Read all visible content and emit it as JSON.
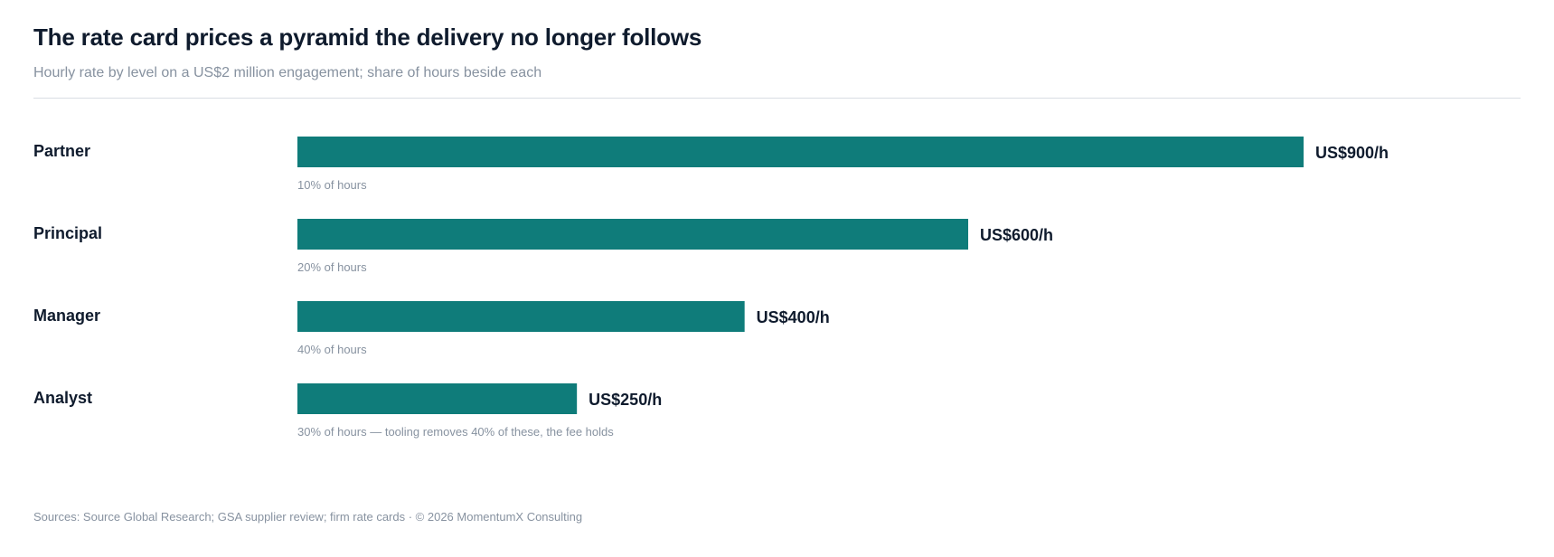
{
  "header": {
    "title": "The rate card prices a pyramid the delivery no longer follows",
    "subtitle": "Hourly rate by level on a US$2 million engagement; share of hours beside each"
  },
  "footer": {
    "source": "Sources: Source Global Research; GSA supplier review; firm rate cards · © 2026 MomentumX Consulting"
  },
  "colors": {
    "bar": "#0f7c7a",
    "label": "#0f1b2d",
    "note": "#8792a0"
  },
  "chart_data": {
    "type": "bar",
    "orientation": "horizontal",
    "title": "The rate card prices a pyramid the delivery no longer follows",
    "subtitle": "Hourly rate by level on a US$2 million engagement; share of hours beside each",
    "categories": [
      "Partner",
      "Principal",
      "Manager",
      "Analyst"
    ],
    "values": [
      900,
      600,
      400,
      250
    ],
    "value_labels": [
      "US$900/h",
      "US$600/h",
      "US$400/h",
      "US$250/h"
    ],
    "notes": [
      "10% of hours",
      "20% of hours",
      "40% of hours",
      "30% of hours — tooling removes 40% of these, the fee holds"
    ],
    "share_of_hours": [
      10,
      20,
      40,
      30
    ],
    "xlim": [
      0,
      900
    ],
    "grid": false,
    "legend": "none"
  }
}
